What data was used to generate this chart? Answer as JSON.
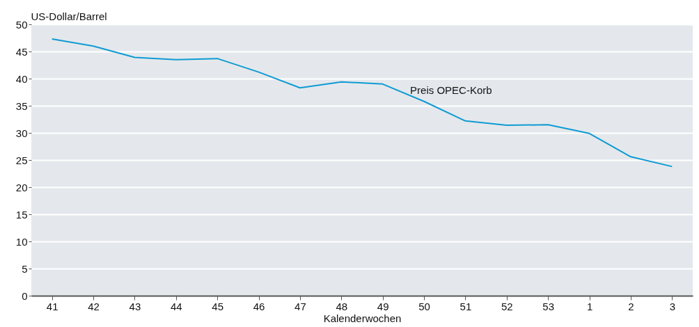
{
  "chart_data": {
    "type": "line",
    "ylabel": "US-Dollar/Barrel",
    "xlabel": "Kalenderwochen",
    "categories": [
      "41",
      "42",
      "43",
      "44",
      "45",
      "46",
      "47",
      "48",
      "49",
      "50",
      "51",
      "52",
      "53",
      "1",
      "2",
      "3"
    ],
    "series": [
      {
        "name": "Preis OPEC-Korb",
        "color": "#0e9bd3",
        "values": [
          47.3,
          46.0,
          43.9,
          43.5,
          43.7,
          41.2,
          38.3,
          39.4,
          39.0,
          35.8,
          32.2,
          31.4,
          31.5,
          29.9,
          25.6,
          23.8
        ]
      }
    ],
    "ylim": [
      0,
      50
    ],
    "yticks": [
      0,
      5,
      10,
      15,
      20,
      25,
      30,
      35,
      40,
      45,
      50
    ],
    "grid": "y",
    "marker": "none",
    "line_style": "solid"
  }
}
